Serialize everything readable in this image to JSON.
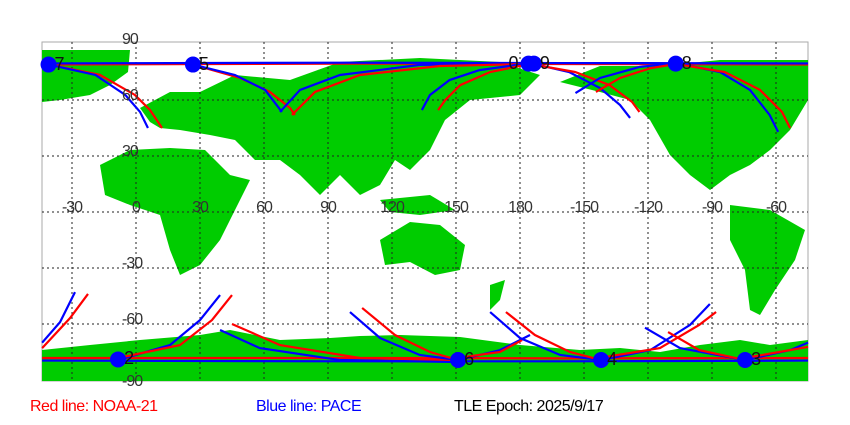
{
  "map": {
    "lon_labels": [
      "-30",
      "0",
      "30",
      "60",
      "90",
      "120",
      "150",
      "180",
      "-150",
      "-120",
      "-90",
      "-60"
    ],
    "lat_labels": [
      "90",
      "60",
      "30",
      "-30",
      "-60",
      "-90"
    ],
    "land_color": "#00cc00",
    "grid": true,
    "markers": [
      {
        "label": "7",
        "lon": -41,
        "lat": 79
      },
      {
        "label": "5",
        "lon": 26.7,
        "lat": 79
      },
      {
        "label": "0",
        "lon": 184,
        "lat": 79.5
      },
      {
        "label": "9",
        "lon": 186.5,
        "lat": 79.5
      },
      {
        "label": "8",
        "lon": 253,
        "lat": 79.5
      },
      {
        "label": "2",
        "lon": -8.4,
        "lat": -79
      },
      {
        "label": "6",
        "lon": 151,
        "lat": -79.3
      },
      {
        "label": "4",
        "lon": 218,
        "lat": -79.3
      },
      {
        "label": "3",
        "lon": 285.5,
        "lat": -79.3
      }
    ],
    "tracks": [
      {
        "sat": "NOAA-21",
        "pts": [
          [
            -44,
            79
          ],
          [
            100,
            79.5
          ],
          [
            200,
            79.3
          ],
          [
            315,
            79
          ]
        ]
      },
      {
        "sat": "PACE",
        "pts": [
          [
            -44,
            79.6
          ],
          [
            100,
            80
          ],
          [
            200,
            79.8
          ],
          [
            315,
            79.6
          ]
        ]
      },
      {
        "sat": "NOAA-21",
        "pts": [
          [
            -41,
            79
          ],
          [
            -17,
            73.5
          ],
          [
            -0.5,
            62.7
          ],
          [
            6.6,
            54.6
          ],
          [
            12.2,
            45
          ]
        ]
      },
      {
        "sat": "PACE",
        "pts": [
          [
            -41,
            79
          ],
          [
            -19,
            73.4
          ],
          [
            -5,
            62.7
          ],
          [
            1.9,
            53.6
          ],
          [
            5.6,
            45
          ]
        ]
      },
      {
        "sat": "NOAA-21",
        "pts": [
          [
            26.7,
            79
          ],
          [
            48.8,
            71.8
          ],
          [
            62.8,
            64.3
          ],
          [
            72.2,
            55.7
          ],
          [
            74.5,
            52
          ]
        ]
      },
      {
        "sat": "PACE",
        "pts": [
          [
            26.7,
            79
          ],
          [
            46.4,
            73.4
          ],
          [
            60.5,
            65.4
          ],
          [
            68.4,
            53.6
          ]
        ]
      },
      {
        "sat": "PACE",
        "pts": [
          [
            67.5,
            53.6
          ],
          [
            76.9,
            65.4
          ],
          [
            95.6,
            73.4
          ],
          [
            133,
            78.8
          ],
          [
            184.7,
            79.5
          ]
        ]
      },
      {
        "sat": "NOAA-21",
        "pts": [
          [
            73.1,
            52
          ],
          [
            83.9,
            64.3
          ],
          [
            105,
            73.4
          ],
          [
            142.5,
            78.2
          ],
          [
            184.7,
            79.3
          ]
        ]
      },
      {
        "sat": "PACE",
        "pts": [
          [
            184.7,
            79.8
          ],
          [
            161,
            76
          ],
          [
            147,
            70.7
          ],
          [
            137.8,
            62.7
          ],
          [
            134,
            54.6
          ]
        ]
      },
      {
        "sat": "NOAA-21",
        "pts": [
          [
            184.7,
            79.3
          ],
          [
            166,
            75
          ],
          [
            152,
            68
          ],
          [
            145,
            60
          ],
          [
            141.6,
            54.6
          ]
        ]
      },
      {
        "sat": "PACE",
        "pts": [
          [
            184.7,
            79.8
          ],
          [
            203,
            75
          ],
          [
            217.5,
            66.4
          ],
          [
            226.9,
            57.3
          ],
          [
            231.6,
            50.4
          ]
        ]
      },
      {
        "sat": "NOAA-21",
        "pts": [
          [
            184.7,
            79.3
          ],
          [
            205.8,
            75
          ],
          [
            222,
            68
          ],
          [
            232.5,
            59
          ],
          [
            236,
            53.6
          ]
        ]
      },
      {
        "sat": "PACE",
        "pts": [
          [
            206,
            63.7
          ],
          [
            217.5,
            71.8
          ],
          [
            236,
            77.7
          ],
          [
            253,
            79.8
          ]
        ]
      },
      {
        "sat": "NOAA-21",
        "pts": [
          [
            215.6,
            64.3
          ],
          [
            226.9,
            71.8
          ],
          [
            241,
            77
          ],
          [
            253,
            79.3
          ]
        ]
      },
      {
        "sat": "PACE",
        "pts": [
          [
            253,
            79.8
          ],
          [
            273.8,
            75
          ],
          [
            287.8,
            65.4
          ],
          [
            297,
            52
          ],
          [
            301,
            42.9
          ]
        ]
      },
      {
        "sat": "NOAA-21",
        "pts": [
          [
            253,
            79.3
          ],
          [
            276,
            75
          ],
          [
            292.5,
            65.4
          ],
          [
            302.8,
            53.6
          ],
          [
            306.6,
            45
          ]
        ]
      },
      {
        "sat": "NOAA-21",
        "pts": [
          [
            -44,
            -78.2
          ],
          [
            100,
            -78.2
          ],
          [
            200,
            -78.4
          ],
          [
            315,
            -78.2
          ]
        ]
      },
      {
        "sat": "PACE",
        "pts": [
          [
            -44,
            -79.6
          ],
          [
            100,
            -80
          ],
          [
            200,
            -80
          ],
          [
            315,
            -79.6
          ]
        ]
      },
      {
        "sat": "PACE",
        "pts": [
          [
            -44,
            -70
          ],
          [
            -35.6,
            -59
          ],
          [
            -28.6,
            -42.9
          ]
        ]
      },
      {
        "sat": "NOAA-21",
        "pts": [
          [
            -44,
            -72.9
          ],
          [
            -30.9,
            -56.8
          ],
          [
            -22.5,
            -43.9
          ]
        ]
      },
      {
        "sat": "PACE",
        "pts": [
          [
            -8.4,
            -79.3
          ],
          [
            15.9,
            -71.3
          ],
          [
            30,
            -57.9
          ],
          [
            39.4,
            -44.5
          ]
        ]
      },
      {
        "sat": "NOAA-21",
        "pts": [
          [
            -8.4,
            -78.2
          ],
          [
            20.6,
            -71.3
          ],
          [
            35.6,
            -57.9
          ],
          [
            45,
            -44.5
          ]
        ]
      },
      {
        "sat": "PACE",
        "pts": [
          [
            39.4,
            -63.2
          ],
          [
            58,
            -72.9
          ],
          [
            95.6,
            -79.3
          ],
          [
            151,
            -80.4
          ]
        ]
      },
      {
        "sat": "NOAA-21",
        "pts": [
          [
            45,
            -60
          ],
          [
            67.5,
            -71.3
          ],
          [
            105,
            -78.2
          ],
          [
            151,
            -79.3
          ]
        ]
      },
      {
        "sat": "PACE",
        "pts": [
          [
            100.3,
            -53.6
          ],
          [
            114.4,
            -67.5
          ],
          [
            133,
            -76.6
          ],
          [
            151,
            -79.3
          ]
        ]
      },
      {
        "sat": "NOAA-21",
        "pts": [
          [
            106,
            -51.4
          ],
          [
            121.4,
            -65.9
          ],
          [
            137.8,
            -75
          ],
          [
            151,
            -79.3
          ]
        ]
      },
      {
        "sat": "PACE",
        "pts": [
          [
            151,
            -79.3
          ],
          [
            170.6,
            -74
          ],
          [
            184.7,
            -65.9
          ]
        ]
      },
      {
        "sat": "NOAA-21",
        "pts": [
          [
            151,
            -78.2
          ],
          [
            170.6,
            -75
          ],
          [
            181,
            -68.6
          ]
        ]
      },
      {
        "sat": "PACE",
        "pts": [
          [
            166,
            -53.6
          ],
          [
            180,
            -67.5
          ],
          [
            198.8,
            -76.6
          ],
          [
            218,
            -79.3
          ]
        ]
      },
      {
        "sat": "NOAA-21",
        "pts": [
          [
            173.4,
            -53.6
          ],
          [
            187,
            -65.9
          ],
          [
            203.4,
            -75
          ],
          [
            218,
            -79.3
          ]
        ]
      },
      {
        "sat": "PACE",
        "pts": [
          [
            218,
            -79.3
          ],
          [
            241,
            -74
          ],
          [
            259.7,
            -60.5
          ],
          [
            269,
            -49.3
          ]
        ]
      },
      {
        "sat": "NOAA-21",
        "pts": [
          [
            218,
            -78
          ],
          [
            245.6,
            -72.9
          ],
          [
            264,
            -60.5
          ],
          [
            271.9,
            -53.6
          ]
        ]
      },
      {
        "sat": "PACE",
        "pts": [
          [
            238.6,
            -62
          ],
          [
            255,
            -72.9
          ],
          [
            285.5,
            -79.3
          ]
        ]
      },
      {
        "sat": "NOAA-21",
        "pts": [
          [
            249.4,
            -64.3
          ],
          [
            264,
            -74
          ],
          [
            285.5,
            -79.3
          ]
        ]
      },
      {
        "sat": "PACE",
        "pts": [
          [
            285.5,
            -79.3
          ],
          [
            306.6,
            -74
          ],
          [
            315,
            -70
          ]
        ]
      },
      {
        "sat": "NOAA-21",
        "pts": [
          [
            285.5,
            -78.2
          ],
          [
            315,
            -72.3
          ]
        ]
      }
    ]
  },
  "colors": {
    "NOAA-21": "#ff0000",
    "PACE": "#0000ff",
    "marker": "#0000ff"
  },
  "legend": {
    "red": "Red line: NOAA-21",
    "blue": "Blue line: PACE",
    "epoch": "TLE Epoch: 2025/9/17"
  }
}
